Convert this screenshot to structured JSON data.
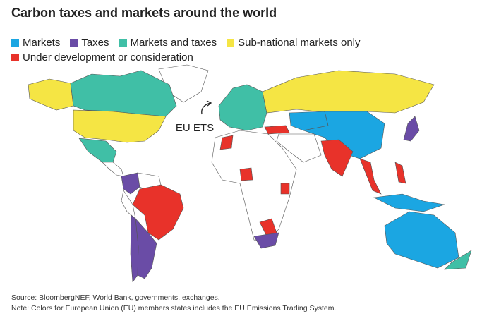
{
  "title": "Carbon taxes and markets around the world",
  "legend": [
    {
      "label": "Markets",
      "color": "#1ba6e2"
    },
    {
      "label": "Taxes",
      "color": "#6a4ca6"
    },
    {
      "label": "Markets and taxes",
      "color": "#40bfa6"
    },
    {
      "label": "Sub-national markets only",
      "color": "#f5e544"
    },
    {
      "label": "Under development or consideration",
      "color": "#e8322a"
    }
  ],
  "annotation": "EU ETS",
  "source": "Source: BloombergNEF, World Bank, governments, exchanges.",
  "note": "Note: Colors for European Union (EU) members states includes the EU Emissions Trading System."
}
